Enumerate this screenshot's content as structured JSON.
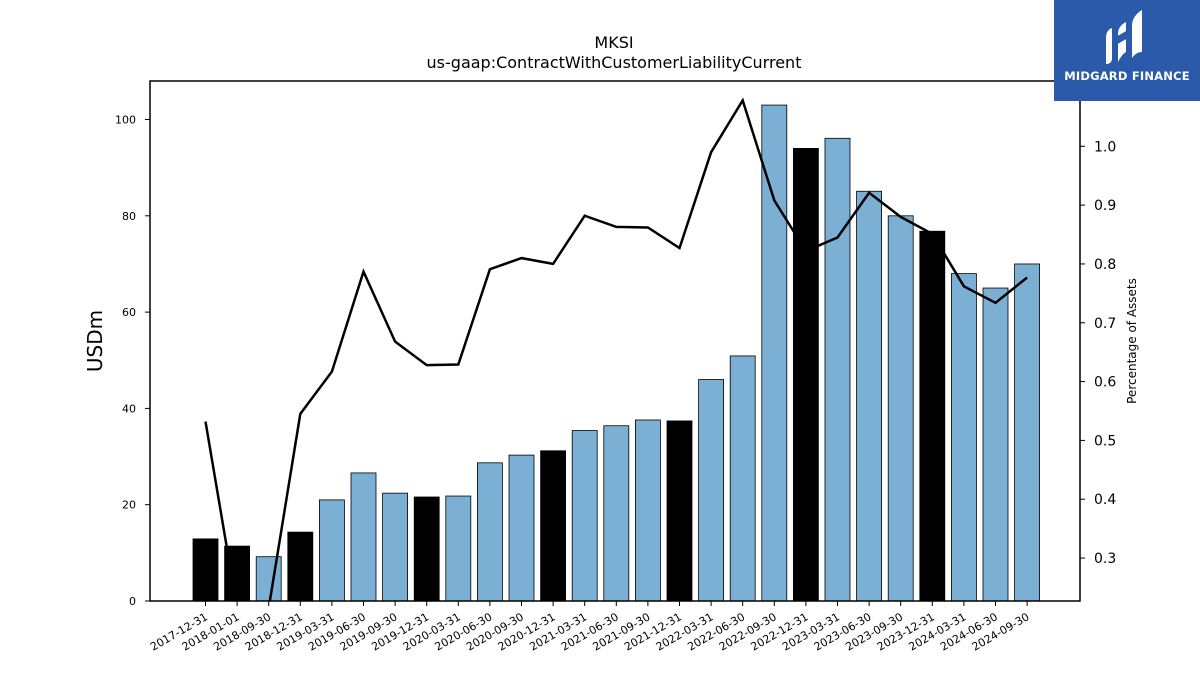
{
  "chart_data": {
    "type": "bar",
    "title": "MKSI",
    "subtitle": "us-gaap:ContractWithCustomerLiabilityCurrent",
    "ylabel": "USDm",
    "y2label": "Percentage of Assets",
    "ylim": [
      0,
      108
    ],
    "y2lim": [
      0.227,
      1.111
    ],
    "yticks": [
      0,
      20,
      40,
      60,
      80,
      100
    ],
    "y2ticks": [
      0.3,
      0.4,
      0.5,
      0.6,
      0.7,
      0.8,
      0.9,
      1.0
    ],
    "categories": [
      "2017-12-31",
      "2018-01-01",
      "2018-09-30",
      "2018-12-31",
      "2019-03-31",
      "2019-06-30",
      "2019-09-30",
      "2019-12-31",
      "2020-03-31",
      "2020-06-30",
      "2020-09-30",
      "2020-12-31",
      "2021-03-31",
      "2021-06-30",
      "2021-09-30",
      "2021-12-31",
      "2022-03-31",
      "2022-06-30",
      "2022-09-30",
      "2022-12-31",
      "2023-03-31",
      "2023-06-30",
      "2023-09-30",
      "2023-12-31",
      "2024-03-31",
      "2024-06-30",
      "2024-09-30"
    ],
    "values": [
      12.9,
      11.4,
      9.2,
      14.3,
      21.0,
      26.6,
      22.4,
      21.6,
      21.8,
      28.7,
      30.3,
      31.2,
      35.4,
      36.4,
      37.6,
      37.4,
      46.0,
      50.9,
      103.0,
      94.0,
      96.1,
      85.1,
      80.0,
      76.8,
      68.0,
      65.0,
      70.0
    ],
    "annual": [
      true,
      true,
      false,
      true,
      false,
      false,
      false,
      true,
      false,
      false,
      false,
      true,
      false,
      false,
      false,
      true,
      false,
      false,
      false,
      true,
      false,
      false,
      false,
      true,
      false,
      false,
      false
    ],
    "pct_assets": [
      0.532,
      0.215,
      0.215,
      0.545,
      0.617,
      0.787,
      0.668,
      0.628,
      0.629,
      0.791,
      0.81,
      0.8,
      0.882,
      0.863,
      0.862,
      0.827,
      0.99,
      1.078,
      0.908,
      0.822,
      0.845,
      0.921,
      0.88,
      0.851,
      0.762,
      0.734,
      0.777
    ],
    "colors": {
      "annual": "#000000",
      "quarterly": "#7bafd4",
      "line": "#000000"
    }
  },
  "branding": {
    "logo_text": "MIDGARD FINANCE",
    "logo_color": "#2b5aab"
  }
}
